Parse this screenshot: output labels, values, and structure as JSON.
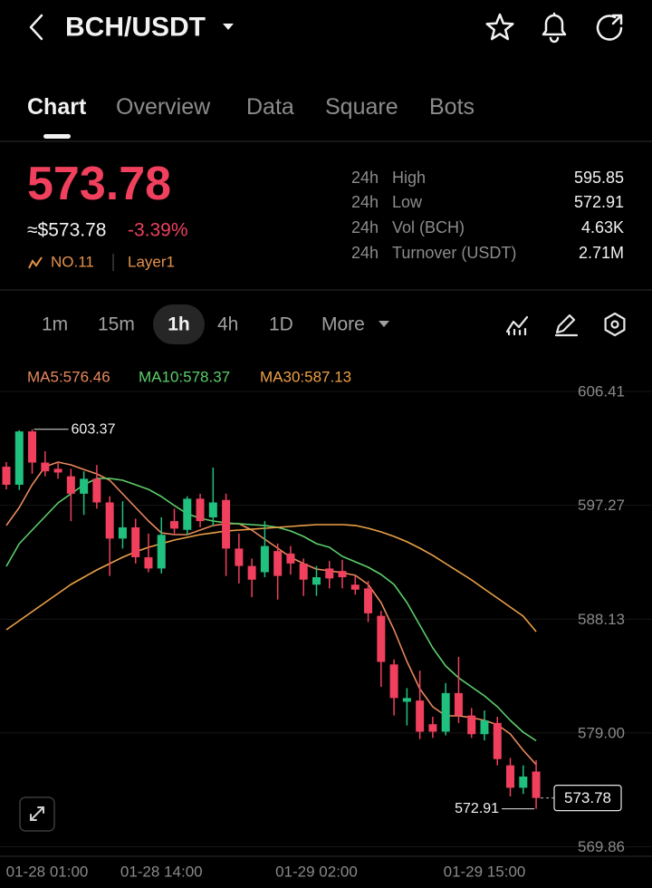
{
  "header": {
    "title": "BCH/USDT"
  },
  "tabs": [
    "Chart",
    "Overview",
    "Data",
    "Square",
    "Bots"
  ],
  "price": {
    "last": "573.78",
    "usd": "≈$573.78",
    "change": "-3.39%",
    "rank": "NO.11",
    "tag": "Layer1"
  },
  "stats": [
    {
      "period": "24h",
      "label": "High",
      "value": "595.85"
    },
    {
      "period": "24h",
      "label": "Low",
      "value": "572.91"
    },
    {
      "period": "24h",
      "label": "Vol (BCH)",
      "value": "4.63K"
    },
    {
      "period": "24h",
      "label": "Turnover (USDT)",
      "value": "2.71M"
    }
  ],
  "intervals": [
    "1m",
    "15m",
    "1h",
    "4h",
    "1D",
    "More"
  ],
  "chart_data": {
    "type": "candlestick",
    "categories": [
      "01-28 01:00",
      null,
      null,
      null,
      null,
      null,
      null,
      null,
      null,
      null,
      null,
      null,
      "01-28 14:00",
      null,
      null,
      null,
      null,
      null,
      null,
      null,
      null,
      null,
      null,
      null,
      "01-29 02:00",
      null,
      null,
      null,
      null,
      null,
      null,
      null,
      null,
      null,
      null,
      null,
      null,
      "01-29 15:00",
      null,
      null,
      null,
      null
    ],
    "open": [
      600.37,
      598.92,
      603.2,
      600.7,
      600.2,
      599.6,
      598.2,
      599.4,
      597.5,
      594.6,
      595.5,
      593.1,
      592.2,
      596.0,
      595.3,
      597.8,
      596.3,
      597.7,
      593.8,
      592.4,
      591.9,
      593.6,
      593.4,
      592.6,
      590.9,
      592.2,
      592.0,
      590.9,
      590.6,
      588.4,
      584.5,
      581.5,
      581.6,
      579.7,
      579.1,
      582.2,
      580.4,
      578.9,
      579.8,
      576.4,
      574.6,
      575.9
    ],
    "high": [
      600.74,
      603.3,
      603.37,
      601.6,
      600.8,
      600.2,
      600.0,
      600.5,
      598.0,
      597.6,
      596.2,
      595.0,
      596.3,
      597.0,
      598.0,
      598.2,
      600.3,
      598.2,
      595.0,
      593.0,
      596.0,
      594.2,
      594.0,
      593.0,
      592.4,
      592.8,
      592.9,
      591.6,
      591.2,
      588.8,
      584.9,
      582.6,
      584.0,
      580.3,
      583.0,
      585.1,
      581.0,
      580.8,
      580.3,
      577.0,
      576.4,
      576.8
    ],
    "low": [
      598.55,
      598.5,
      599.8,
      599.6,
      599.4,
      596.0,
      596.5,
      597.0,
      591.6,
      593.8,
      592.6,
      591.9,
      591.8,
      594.9,
      594.9,
      595.5,
      595.6,
      591.6,
      591.0,
      589.9,
      591.5,
      589.7,
      591.7,
      590.0,
      590.0,
      590.6,
      590.6,
      590.1,
      587.9,
      582.7,
      580.4,
      579.6,
      578.5,
      578.6,
      578.8,
      579.8,
      578.6,
      578.4,
      576.4,
      573.9,
      574.1,
      572.91
    ],
    "close": [
      598.92,
      603.2,
      600.7,
      600.0,
      599.9,
      598.2,
      599.4,
      597.5,
      594.6,
      595.5,
      593.1,
      592.2,
      594.9,
      595.4,
      597.8,
      596.0,
      597.5,
      593.8,
      592.4,
      591.3,
      594.0,
      591.6,
      592.6,
      591.3,
      591.5,
      591.4,
      591.5,
      590.5,
      588.6,
      584.7,
      581.8,
      581.8,
      579.1,
      579.1,
      582.2,
      580.4,
      578.9,
      580.0,
      576.9,
      574.6,
      575.5,
      573.78
    ],
    "up_color": "#20c07f",
    "down_color": "#f0405e",
    "ma": [
      {
        "name": "MA5:576.46",
        "color": "#e8895c",
        "values": [
          595.65,
          597.1,
          598.92,
          600.37,
          600.74,
          600.52,
          600.15,
          599.79,
          599.28,
          598.19,
          597.1,
          596.01,
          595.06,
          594.92,
          594.92,
          595.28,
          595.65,
          595.79,
          595.79,
          595.28,
          594.55,
          593.83,
          593.1,
          592.59,
          592.15,
          592.01,
          591.86,
          591.65,
          590.92,
          589.46,
          587.28,
          584.74,
          582.55,
          581.1,
          580.37,
          580.37,
          580.23,
          580.01,
          579.65,
          578.92,
          577.61,
          576.46
        ]
      },
      {
        "name": "MA10:578.37",
        "color": "#5ccf6a",
        "values": [
          592.37,
          594.19,
          595.28,
          596.37,
          597.46,
          598.19,
          598.92,
          599.43,
          599.43,
          599.28,
          598.92,
          598.55,
          597.97,
          597.25,
          596.59,
          596.23,
          596.01,
          595.86,
          595.79,
          595.72,
          595.65,
          595.5,
          595.21,
          594.77,
          594.19,
          593.9,
          593.17,
          592.74,
          592.3,
          591.72,
          590.92,
          589.46,
          587.65,
          585.83,
          584.37,
          583.43,
          582.7,
          581.97,
          581.1,
          580.01,
          579.06,
          578.37
        ]
      },
      {
        "name": "MA30:587.13",
        "color": "#eda146",
        "values": [
          587.28,
          588.01,
          588.74,
          589.46,
          590.19,
          590.92,
          591.5,
          592.08,
          592.59,
          593.1,
          593.54,
          593.9,
          594.19,
          594.48,
          594.7,
          594.92,
          595.06,
          595.21,
          595.28,
          595.35,
          595.43,
          595.5,
          595.57,
          595.65,
          595.72,
          595.72,
          595.72,
          595.65,
          595.43,
          595.14,
          594.77,
          594.34,
          593.83,
          593.25,
          592.59,
          591.94,
          591.28,
          590.55,
          589.83,
          589.1,
          588.37,
          587.13
        ]
      }
    ],
    "ylim": [
      569.1,
      609.1
    ],
    "yticks": [
      606.41,
      597.27,
      588.13,
      {
        "value": 579,
        "label": "579.00"
      },
      569.86
    ],
    "grid": true
  }
}
